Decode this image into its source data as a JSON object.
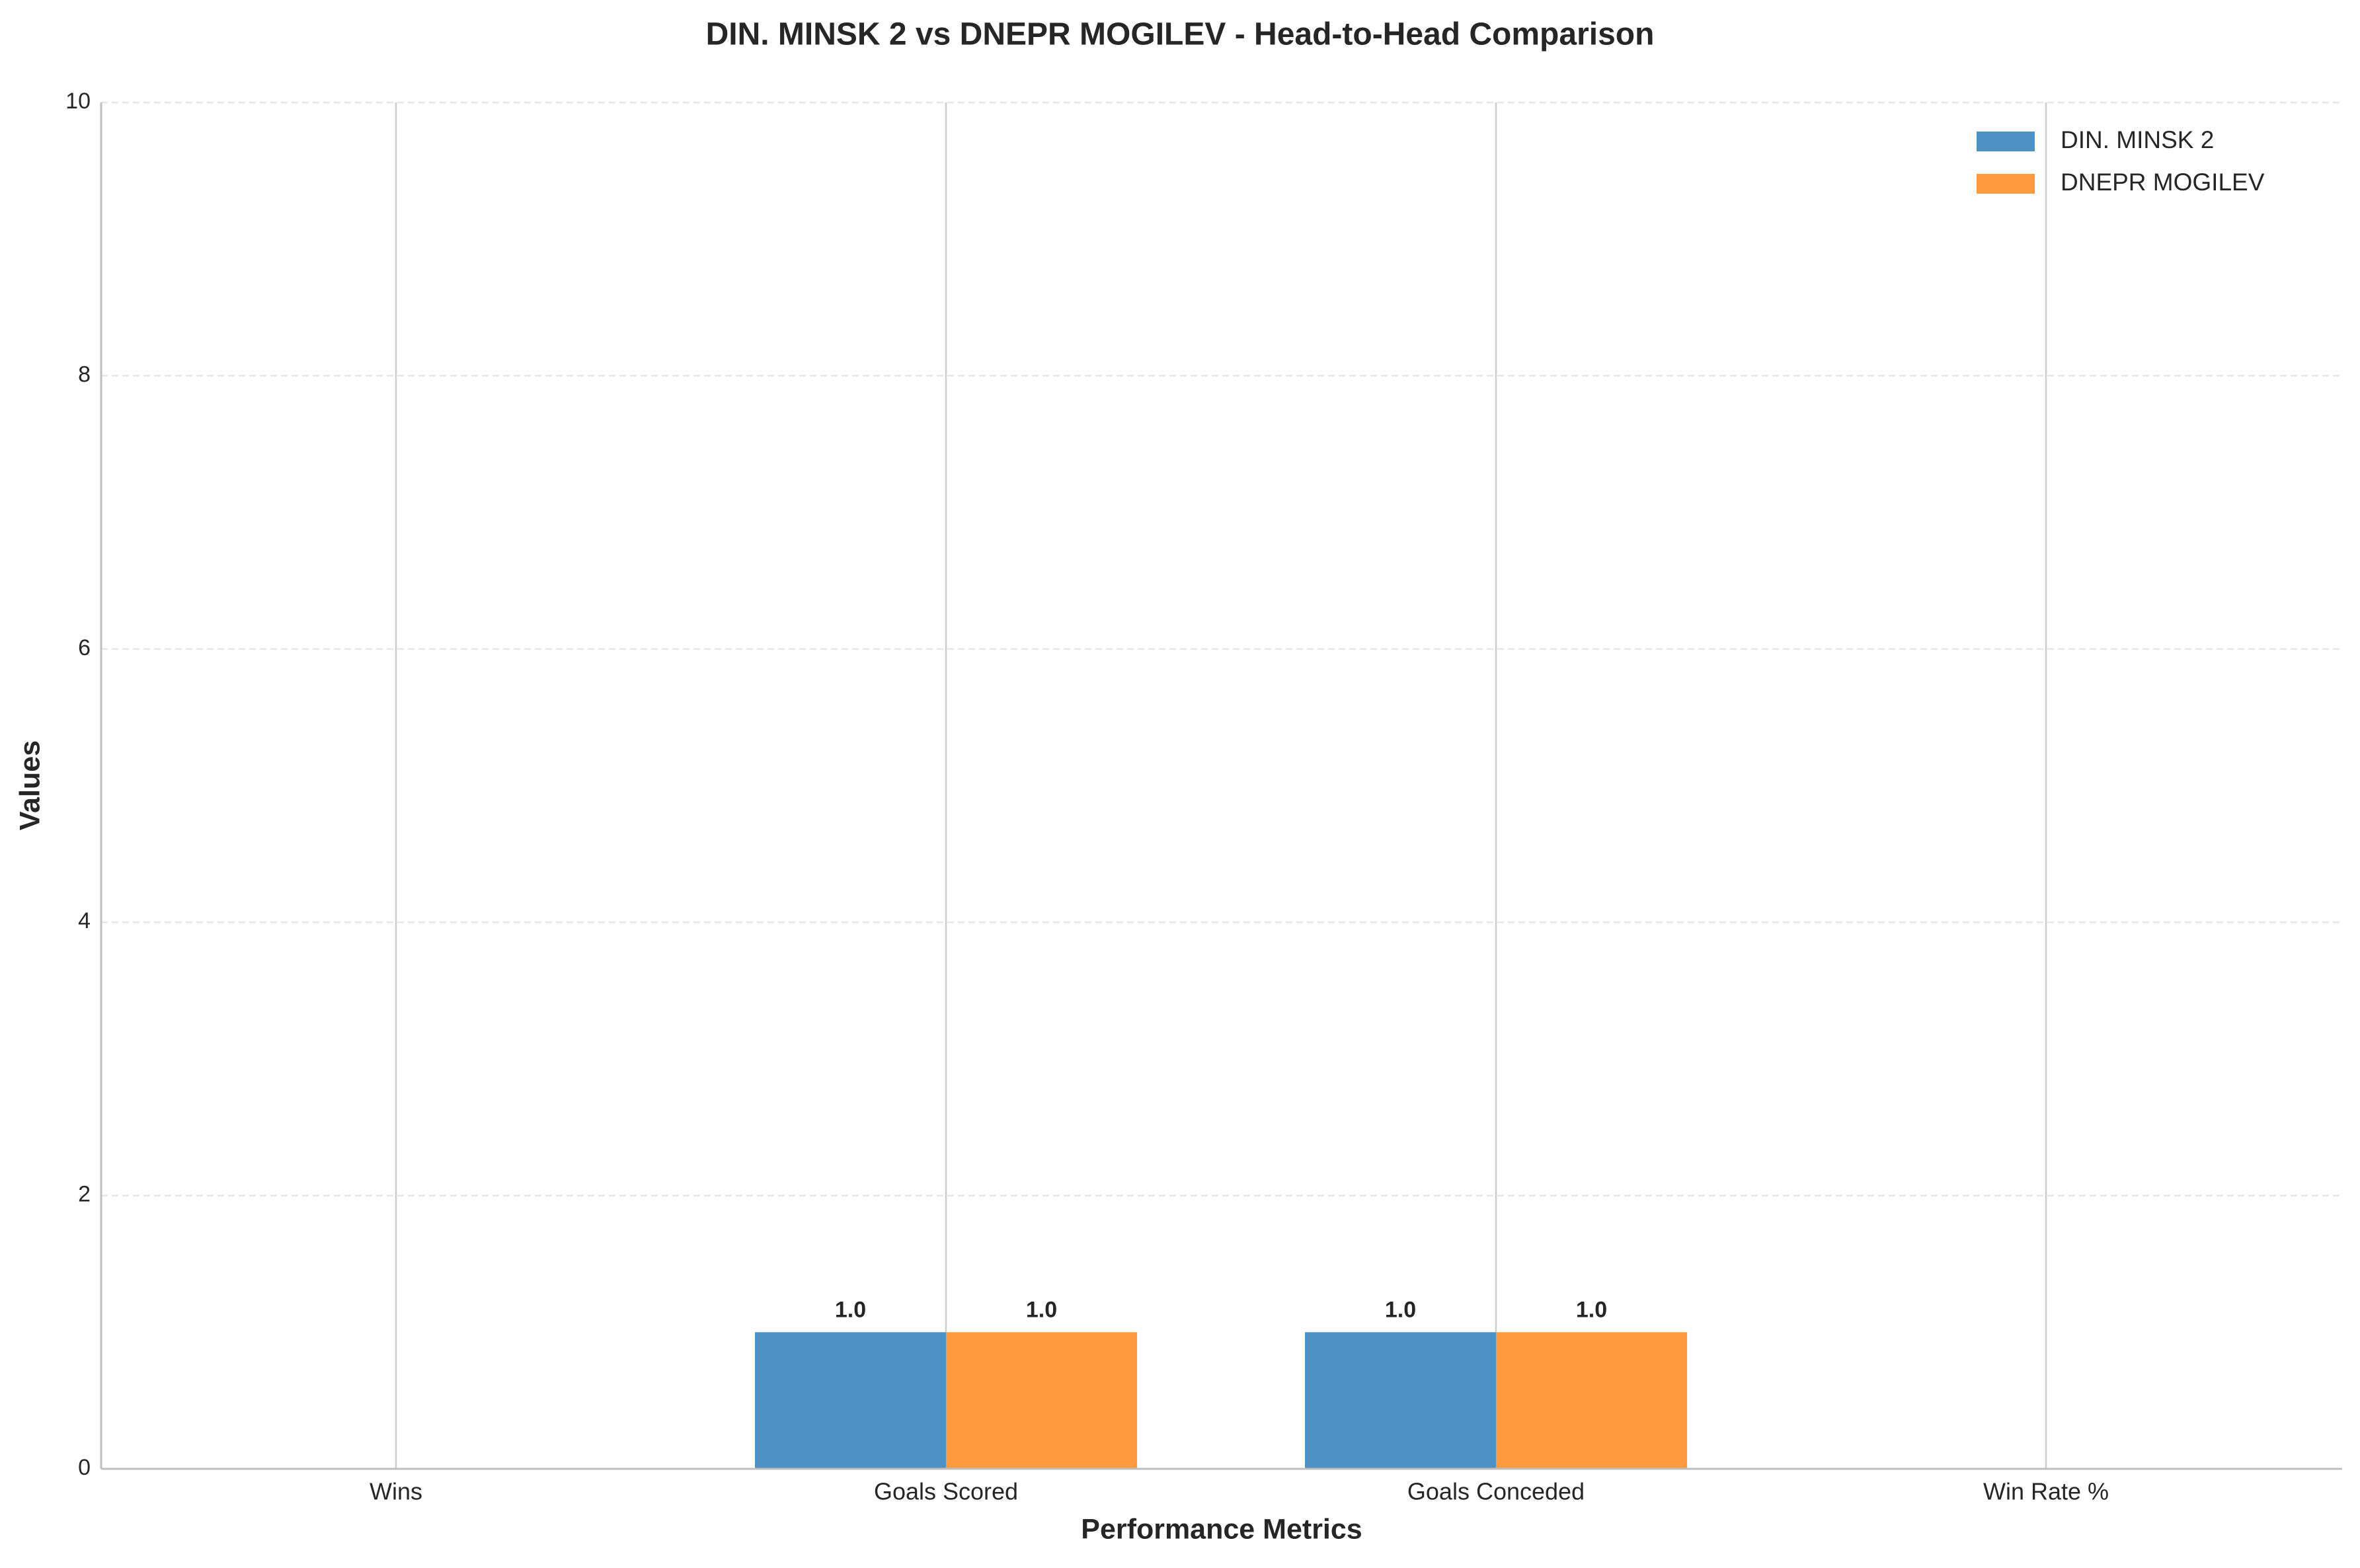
{
  "chart_data": {
    "type": "bar",
    "title": "DIN. MINSK 2 vs DNEPR MOGILEV - Head-to-Head Comparison",
    "x_label": "Performance Metrics",
    "y_label": "Values",
    "categories": [
      "Wins",
      "Goals Scored",
      "Goals Conceded",
      "Win Rate %"
    ],
    "series": [
      {
        "name": "DIN. MINSK 2",
        "color": "#4c92c3",
        "values": [
          0,
          1,
          1,
          0
        ],
        "value_labels": [
          null,
          "1.0",
          "1.0",
          null
        ]
      },
      {
        "name": "DNEPR MOGILEV",
        "color": "#ff993e",
        "values": [
          0,
          1,
          1,
          0
        ],
        "value_labels": [
          null,
          "1.0",
          "1.0",
          null
        ]
      }
    ],
    "ylim": [
      0,
      10
    ],
    "yticks": [
      0,
      2,
      4,
      6,
      8,
      10
    ],
    "grid": true,
    "legend": "upper right"
  }
}
